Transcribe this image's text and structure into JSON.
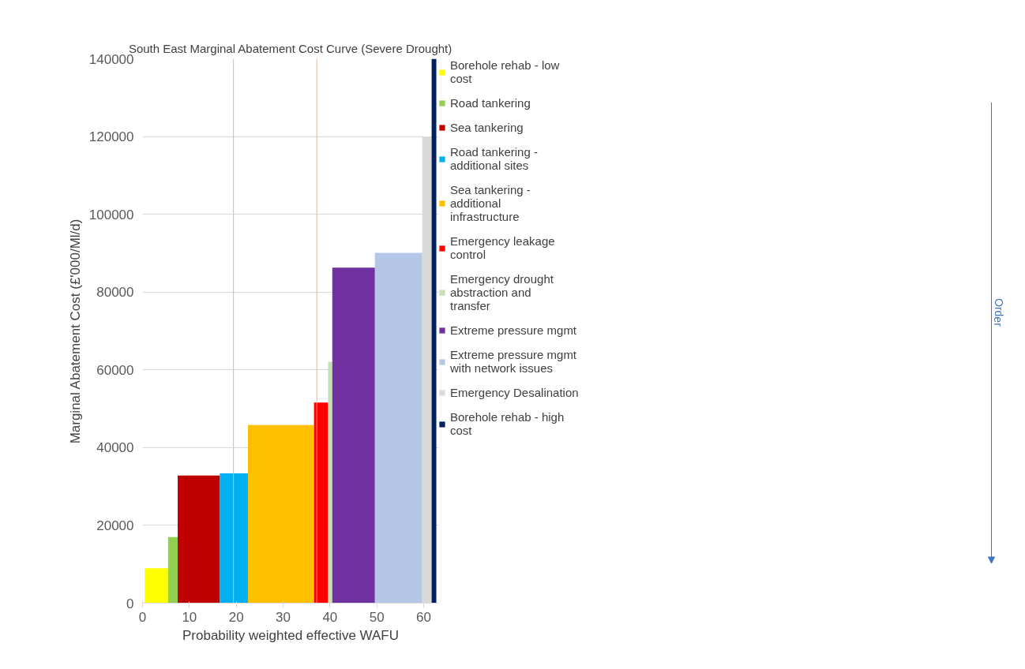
{
  "chart_data": {
    "type": "area",
    "title": "South East Marginal Abatement Cost Curve (Severe Drought)",
    "xlabel": "Probability weighted effective WAFU",
    "ylabel": "Marginal Abatement Cost (£'000/Ml/d)",
    "xlim": [
      0,
      63.2
    ],
    "xticks": [
      0,
      10,
      20,
      30,
      40,
      50,
      60
    ],
    "ylim": [
      0,
      140000
    ],
    "yticks": [
      0,
      20000,
      40000,
      60000,
      80000,
      100000,
      120000,
      140000
    ],
    "grid": "y",
    "legend": "right",
    "series": [
      {
        "name": "Borehole rehab - low cost",
        "color": "#ffff00",
        "x": [
          0.45,
          5.45
        ],
        "values": [
          9000,
          9000
        ]
      },
      {
        "name": "Road tankering",
        "color": "#92d050",
        "x": [
          5.45,
          7.5
        ],
        "values": [
          17000,
          17000
        ]
      },
      {
        "name": "Sea tankering",
        "color": "#c00000",
        "x": [
          7.5,
          16.5
        ],
        "values": [
          32800,
          32800
        ]
      },
      {
        "name": "Road tankering - additional sites",
        "color": "#00b0f0",
        "x": [
          16.5,
          22.5
        ],
        "values": [
          33400,
          33400
        ]
      },
      {
        "name": "Sea tankering - additional infrastructure",
        "color": "#ffc000",
        "x": [
          22.5,
          36.6
        ],
        "values": [
          45800,
          45800
        ]
      },
      {
        "name": "Emergency leakage control",
        "color": "#ff0000",
        "x": [
          36.6,
          39.6
        ],
        "values": [
          51600,
          51600
        ]
      },
      {
        "name": "Emergency drought abstraction and transfer",
        "color": "#c5e0b4",
        "x": [
          39.6,
          40.5
        ],
        "values": [
          62100,
          62100
        ]
      },
      {
        "name": "Extreme pressure mgmt",
        "color": "#7030a0",
        "x": [
          40.5,
          49.6
        ],
        "values": [
          86300,
          86300
        ]
      },
      {
        "name": "Extreme pressure mgmt with network issues",
        "color": "#b4c7e7",
        "x": [
          49.6,
          59.7
        ],
        "values": [
          90100,
          90100
        ]
      },
      {
        "name": "Emergency Desalination",
        "color": "#d9d9d9",
        "x": [
          59.7,
          61.7
        ],
        "values": [
          120000,
          120000
        ]
      },
      {
        "name": "Borehole rehab - high cost",
        "color": "#002060",
        "x": [
          61.7,
          62.7
        ],
        "values": [
          140000,
          140000
        ]
      }
    ],
    "ref_lines": [
      {
        "axis": "x",
        "value": 19.4,
        "color": "#f4b183"
      },
      {
        "axis": "x",
        "value": 37.2,
        "color": "#f4b183"
      }
    ],
    "annotations": [
      "Order"
    ]
  }
}
